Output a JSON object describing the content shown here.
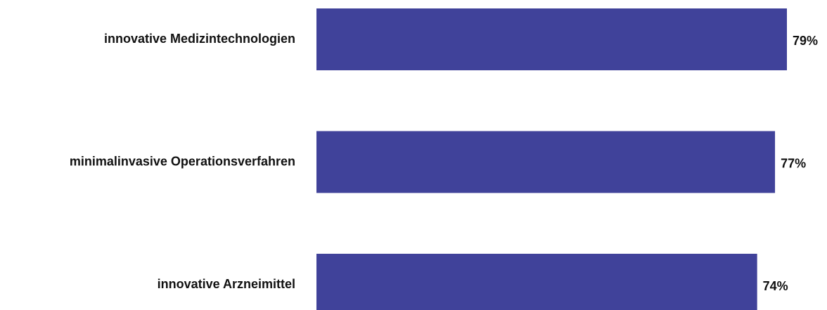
{
  "chart_data": {
    "type": "bar",
    "orientation": "horizontal",
    "categories": [
      "innovative Medizintechnologien",
      "minimalinvasive Operationsverfahren",
      "innovative Arzneimittel"
    ],
    "values": [
      79,
      77,
      74
    ],
    "value_labels": [
      "79%",
      "77%",
      "74%"
    ],
    "unit": "%",
    "title": "",
    "xlabel": "",
    "ylabel": "",
    "xlim": [
      0,
      79
    ],
    "grid": false,
    "legend": "none",
    "bar_color": "#40429a"
  }
}
